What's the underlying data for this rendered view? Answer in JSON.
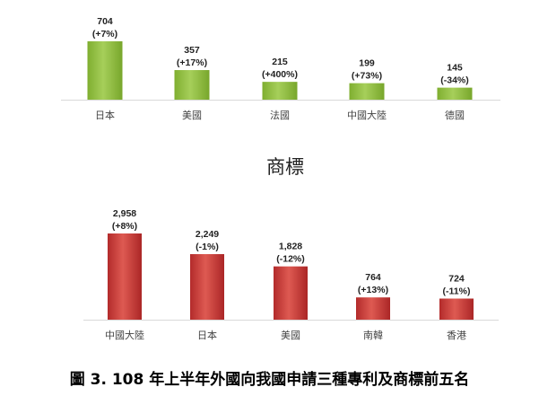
{
  "caption": "圖 3. 108 年上半年外國向我國申請三種專利及商標前五名",
  "chart_data": [
    {
      "type": "bar",
      "title": "",
      "categories": [
        "日本",
        "美國",
        "法國",
        "中國大陸",
        "德國"
      ],
      "values": [
        704,
        357,
        215,
        199,
        145
      ],
      "change_labels": [
        "(+7%)",
        "(+17%)",
        "(+400%)",
        "(+73%)",
        "(-34%)"
      ],
      "value_labels": [
        "704",
        "357",
        "215",
        "199",
        "145"
      ],
      "color": "#8dbd3c",
      "ylim": [
        0,
        704
      ],
      "grid": false
    },
    {
      "type": "bar",
      "title": "商標",
      "categories": [
        "中國大陸",
        "日本",
        "美國",
        "南韓",
        "香港"
      ],
      "values": [
        2958,
        2249,
        1828,
        764,
        724
      ],
      "change_labels": [
        "(+8%)",
        "(-1%)",
        "(-12%)",
        "(+13%)",
        "(-11%)"
      ],
      "value_labels": [
        "2,958",
        "2,249",
        "1,828",
        "764",
        "724"
      ],
      "color": "#c83a3a",
      "ylim": [
        0,
        2958
      ],
      "grid": false
    }
  ]
}
